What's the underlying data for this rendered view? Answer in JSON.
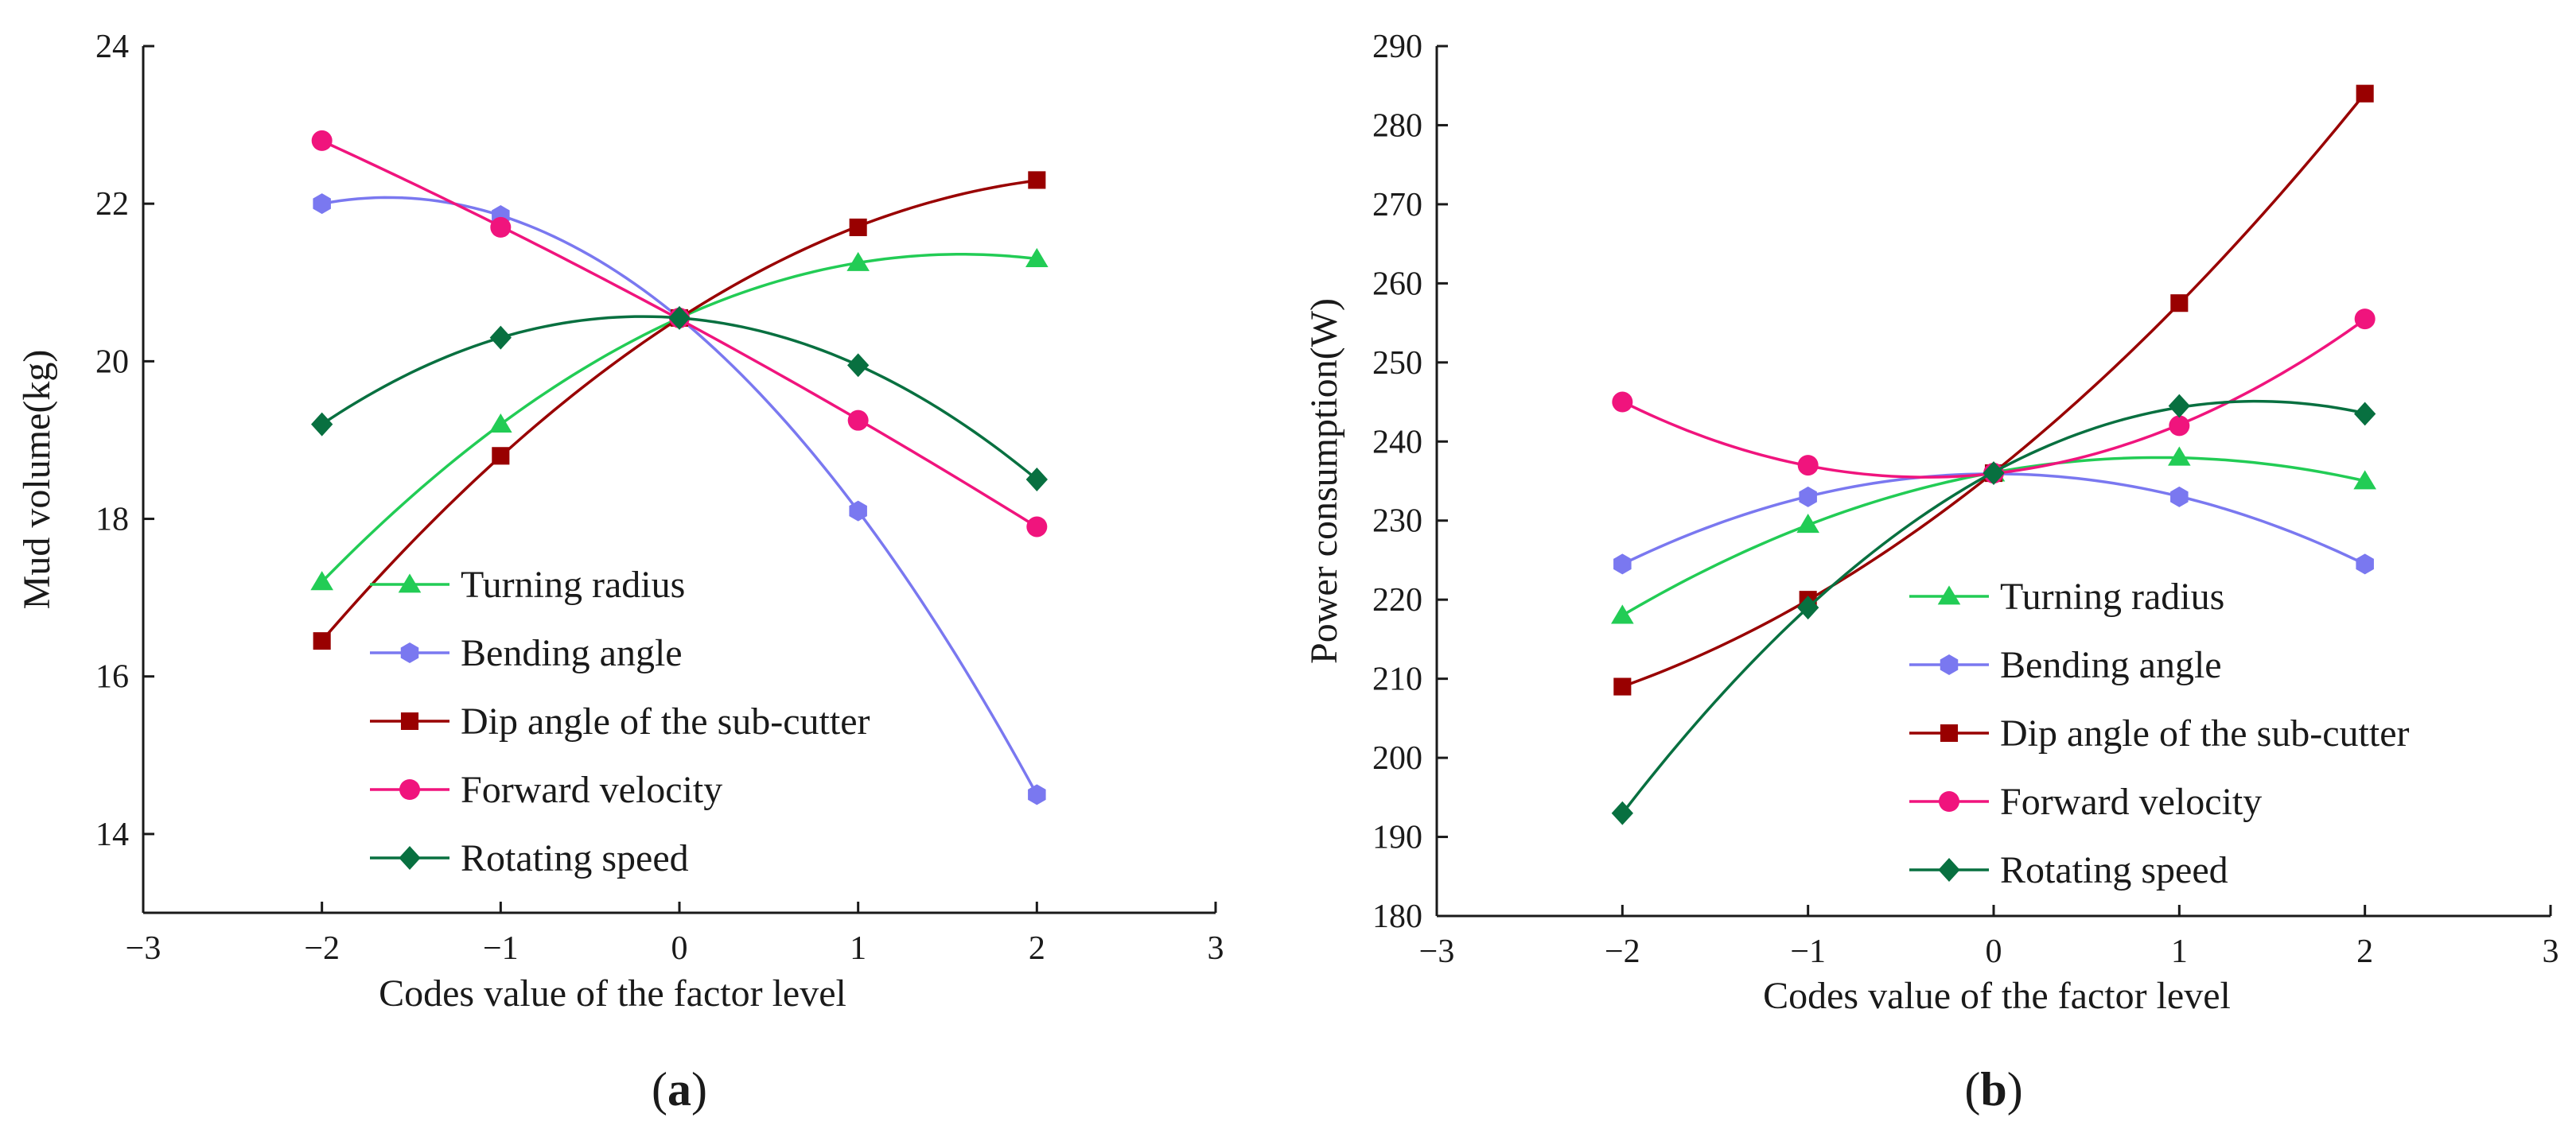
{
  "chart_data": [
    {
      "type": "line",
      "panel_label": "a",
      "title": "",
      "xlabel": "Codes value of the factor level",
      "ylabel": "Mud volume(kg)",
      "xlim": [
        -3,
        3
      ],
      "ylim": [
        13,
        24
      ],
      "xticks": [
        -3,
        -2,
        -1,
        0,
        1,
        2,
        3
      ],
      "xtick_labels": [
        "−3",
        "−2",
        "−1",
        "0",
        "1",
        "2",
        "3"
      ],
      "yticks": [
        14,
        16,
        18,
        20,
        22,
        24
      ],
      "ytick_labels": [
        "14",
        "16",
        "18",
        "20",
        "22",
        "24"
      ],
      "legend_position": "bottom-center",
      "x": [
        -2,
        -1,
        0,
        1,
        2
      ],
      "series": [
        {
          "name": "Turning radius",
          "marker": "triangle",
          "color": "#22cc55",
          "values": [
            17.2,
            19.2,
            20.55,
            21.25,
            21.3
          ]
        },
        {
          "name": "Bending angle",
          "marker": "hexagon",
          "color": "#7a78f0",
          "values": [
            22.0,
            21.85,
            20.55,
            18.1,
            14.5
          ]
        },
        {
          "name": "Dip angle of the sub-cutter",
          "marker": "square",
          "color": "#990000",
          "values": [
            16.45,
            18.8,
            20.55,
            21.7,
            22.3
          ]
        },
        {
          "name": "Forward velocity",
          "marker": "circle",
          "color": "#f0147d",
          "values": [
            22.8,
            21.7,
            20.55,
            19.25,
            17.9
          ]
        },
        {
          "name": "Rotating speed",
          "marker": "diamond",
          "color": "#087040",
          "values": [
            19.2,
            20.3,
            20.55,
            19.95,
            18.5
          ]
        }
      ]
    },
    {
      "type": "line",
      "panel_label": "b",
      "title": "",
      "xlabel": "Codes value of the factor level",
      "ylabel": "Power consumption(W)",
      "xlim": [
        -3,
        3
      ],
      "ylim": [
        180,
        290
      ],
      "xticks": [
        -3,
        -2,
        -1,
        0,
        1,
        2,
        3
      ],
      "xtick_labels": [
        "−3",
        "−2",
        "−1",
        "0",
        "1",
        "2",
        "3"
      ],
      "yticks": [
        180,
        190,
        200,
        210,
        220,
        230,
        240,
        250,
        260,
        270,
        280,
        290
      ],
      "ytick_labels": [
        "180",
        "190",
        "200",
        "210",
        "220",
        "230",
        "240",
        "250",
        "260",
        "270",
        "280",
        "290"
      ],
      "legend_position": "bottom-center",
      "x": [
        -2,
        -1,
        0,
        1,
        2
      ],
      "series": [
        {
          "name": "Turning radius",
          "marker": "triangle",
          "color": "#22cc55",
          "values": [
            218,
            229.5,
            236,
            238,
            235
          ]
        },
        {
          "name": "Bending angle",
          "marker": "hexagon",
          "color": "#7a78f0",
          "values": [
            224.5,
            233,
            236,
            233,
            224.5
          ]
        },
        {
          "name": "Dip angle of the sub-cutter",
          "marker": "square",
          "color": "#990000",
          "values": [
            209,
            220,
            236,
            257.5,
            284
          ]
        },
        {
          "name": "Forward velocity",
          "marker": "circle",
          "color": "#f0147d",
          "values": [
            245,
            237,
            236,
            242,
            255.5
          ]
        },
        {
          "name": "Rotating speed",
          "marker": "diamond",
          "color": "#087040",
          "values": [
            193,
            219,
            236,
            244.5,
            243.5
          ]
        }
      ]
    }
  ]
}
